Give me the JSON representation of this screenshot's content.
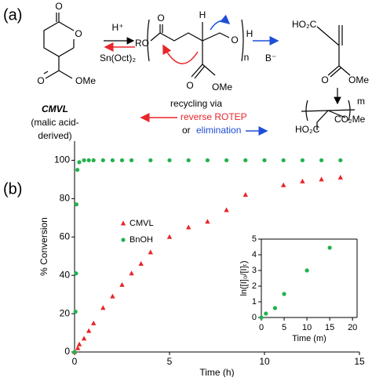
{
  "scheme": {
    "label": "(a)",
    "acid": "H⁺",
    "catalyst": "Sn(Oct)₂",
    "carbonyl_o": "O",
    "ring_o": "O",
    "ester_o": "O",
    "ester_ome": "OMe",
    "monomer_name": "CMVL",
    "monomer_note_1": "(malic acid-",
    "monomer_note_2": "derived)",
    "polymer_ro": "RO",
    "polymer_carbonyl_o": "O",
    "polymer_h_top": "H",
    "polymer_o": "O",
    "polymer_h_end": "H",
    "polymer_n": "n",
    "polymer_ester_o": "O",
    "polymer_ome": "OMe",
    "base": "B⁻",
    "alkene_acid": "HO₂C",
    "alkene_ester_o": "O",
    "alkene_ome": "OMe",
    "vinyl_m": "m",
    "vinyl_acid": "HO₂C",
    "vinyl_ester": "CO₂Me",
    "recycling": "recycling via",
    "reverse": "reverse ROTEP",
    "or": "or",
    "elimination": "elimination"
  },
  "panel_b_label": "(b)",
  "chart_data": [
    {
      "type": "scatter",
      "xlabel": "Time (h)",
      "ylabel": "% Conversion",
      "xlim": [
        0,
        15
      ],
      "ylim": [
        0,
        110
      ],
      "xticks": [
        0,
        5,
        10,
        15
      ],
      "yticks": [
        0,
        20,
        40,
        60,
        80,
        100
      ],
      "frame": "axes",
      "legend": "left",
      "series": [
        {
          "name": "CMVL",
          "color": "#e8262a",
          "marker": "triangle",
          "x": [
            0,
            0.17,
            0.25,
            0.5,
            0.75,
            1,
            1.5,
            2,
            2.5,
            3,
            3.5,
            4,
            5,
            6,
            7,
            8,
            9,
            11,
            12,
            13,
            14
          ],
          "values": [
            0,
            2,
            4,
            7,
            11,
            15,
            23,
            29,
            35,
            41,
            46,
            52,
            60,
            65,
            68,
            74,
            82,
            87,
            89,
            90,
            91
          ]
        },
        {
          "name": "BnOH",
          "color": "#22b14c",
          "marker": "circle",
          "x": [
            0,
            0.05,
            0.08,
            0.1,
            0.15,
            0.25,
            0.5,
            0.75,
            1,
            1.5,
            2,
            2.5,
            3,
            4,
            5,
            6,
            7,
            8,
            9,
            10,
            11,
            12,
            13,
            14
          ],
          "values": [
            0,
            21,
            41,
            77,
            95,
            99,
            100,
            100,
            100,
            100,
            100,
            100,
            100,
            100,
            100,
            100,
            100,
            100,
            100,
            100,
            100,
            100,
            100,
            100
          ]
        }
      ]
    },
    {
      "type": "scatter",
      "xlabel": "Time (m)",
      "ylabel": "ln([I]₀/[I]ₜ)",
      "xlim": [
        0,
        21
      ],
      "ylim": [
        0,
        5
      ],
      "xticks": [
        0,
        5,
        10,
        15,
        20
      ],
      "yticks": [
        0,
        1,
        2,
        3,
        4,
        5
      ],
      "frame": "box",
      "series": [
        {
          "color": "#22b14c",
          "marker": "circle",
          "x": [
            0,
            1,
            3,
            5,
            10,
            15
          ],
          "values": [
            0,
            0.25,
            0.6,
            1.5,
            3,
            4.45
          ]
        }
      ]
    }
  ]
}
